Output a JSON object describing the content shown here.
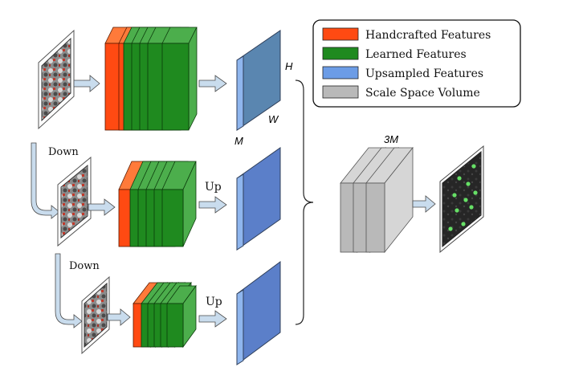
{
  "legend": {
    "items": [
      {
        "label": "Handcrafted Features",
        "color": "#ff4a12"
      },
      {
        "label": "Learned Features",
        "color": "#1f8a1f"
      },
      {
        "label": "Upsampled Features",
        "color": "#6c9ce6"
      },
      {
        "label": "Scale Space Volume",
        "color": "#b9b9b9"
      }
    ]
  },
  "labels": {
    "down_1": "Down",
    "down_2": "Down",
    "up_1": "Up",
    "up_2": "Up",
    "dim_h": "H",
    "dim_w": "W",
    "dim_m": "M",
    "dim_3m": "3M"
  },
  "colors": {
    "handcrafted_front": "#ff4a12",
    "handcrafted_side": "#ff7a3a",
    "learned_front": "#1f8a1f",
    "learned_side": "#4cae4c",
    "upsampled_front": "#5b7fc9",
    "upsampled_side": "#8fb6ee",
    "volume_front": "#b9b9b9",
    "volume_side": "#d6d6d6",
    "arrow_fill": "#c9dced",
    "arrow_stroke": "#4a4a4a",
    "keypoint": "#66e066"
  }
}
